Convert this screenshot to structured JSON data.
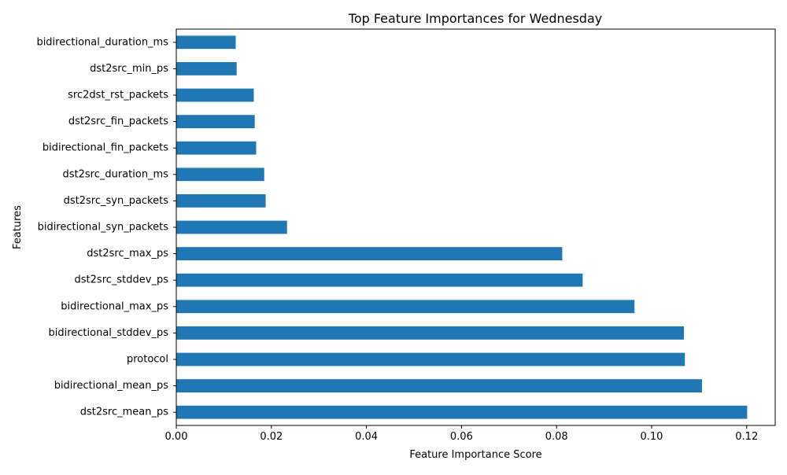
{
  "chart_data": {
    "type": "bar",
    "orientation": "horizontal",
    "title": "Top Feature Importances for Wednesday",
    "xlabel": "Feature Importance Score",
    "ylabel": "Features",
    "xlim": [
      0,
      0.126
    ],
    "x_ticks": [
      "0.00",
      "0.02",
      "0.04",
      "0.06",
      "0.08",
      "0.10",
      "0.12"
    ],
    "x_tick_values": [
      0,
      0.02,
      0.04,
      0.06,
      0.08,
      0.1,
      0.12
    ],
    "bar_color": "#1f77b4",
    "grid": false,
    "categories": [
      "dst2src_mean_ps",
      "bidirectional_mean_ps",
      "protocol",
      "bidirectional_stddev_ps",
      "bidirectional_max_ps",
      "dst2src_stddev_ps",
      "dst2src_max_ps",
      "bidirectional_syn_packets",
      "dst2src_syn_packets",
      "dst2src_duration_ms",
      "bidirectional_fin_packets",
      "dst2src_fin_packets",
      "src2dst_rst_packets",
      "dst2src_min_ps",
      "bidirectional_duration_ms"
    ],
    "values": [
      0.1201,
      0.1106,
      0.107,
      0.1068,
      0.0964,
      0.0855,
      0.0812,
      0.0233,
      0.0188,
      0.0185,
      0.0168,
      0.0165,
      0.0163,
      0.0127,
      0.0125
    ]
  }
}
